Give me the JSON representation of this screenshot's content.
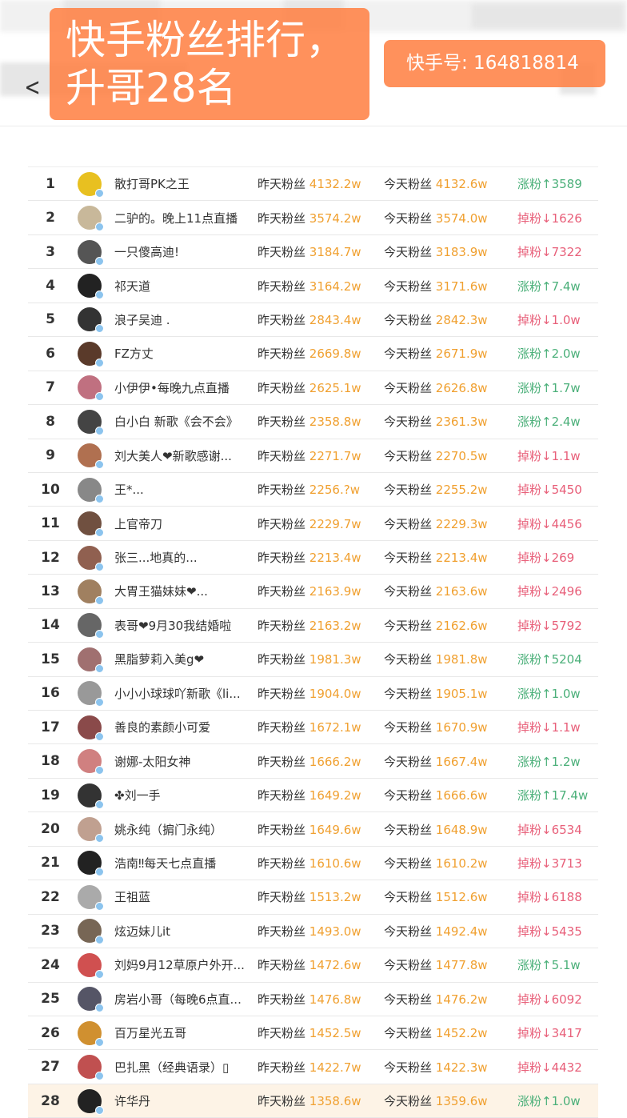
{
  "header": {
    "back_icon": "chevron-left-icon"
  },
  "labels": {
    "yesterday": "昨天粉丝",
    "today": "今天粉丝",
    "gain": "涨粉↑",
    "loss": "掉粉↓"
  },
  "colors": {
    "number": "#f0a030",
    "gain": "#4cb07a",
    "loss": "#e8607a",
    "overlay": "#ff8246",
    "highlight_row": "#fdf3e6"
  },
  "rows": [
    {
      "rank": "1",
      "name": "散打哥PK之王",
      "yesterday": "4132.2w",
      "today": "4132.6w",
      "dir": "up",
      "change": "3589"
    },
    {
      "rank": "2",
      "name": "二驴的。晚上11点直播",
      "yesterday": "3574.2w",
      "today": "3574.0w",
      "dir": "down",
      "change": "1626"
    },
    {
      "rank": "3",
      "name": "一只傻高迪!",
      "yesterday": "3184.7w",
      "today": "3183.9w",
      "dir": "down",
      "change": "7322"
    },
    {
      "rank": "4",
      "name": "祁天道",
      "yesterday": "3164.2w",
      "today": "3171.6w",
      "dir": "up",
      "change": "7.4w"
    },
    {
      "rank": "5",
      "name": "浪子吴迪 .",
      "yesterday": "2843.4w",
      "today": "2842.3w",
      "dir": "down",
      "change": "1.0w"
    },
    {
      "rank": "6",
      "name": "FZ方丈",
      "yesterday": "2669.8w",
      "today": "2671.9w",
      "dir": "up",
      "change": "2.0w"
    },
    {
      "rank": "7",
      "name": "小伊伊•每晚九点直播",
      "yesterday": "2625.1w",
      "today": "2626.8w",
      "dir": "up",
      "change": "1.7w"
    },
    {
      "rank": "8",
      "name": "白小白 新歌《会不会》",
      "yesterday": "2358.8w",
      "today": "2361.3w",
      "dir": "up",
      "change": "2.4w"
    },
    {
      "rank": "9",
      "name": "刘大美人❤新歌感谢...",
      "yesterday": "2271.7w",
      "today": "2270.5w",
      "dir": "down",
      "change": "1.1w"
    },
    {
      "rank": "10",
      "name": "王*...",
      "yesterday": "2256.?w",
      "today": "2255.2w",
      "dir": "down",
      "change": "5450"
    },
    {
      "rank": "11",
      "name": "上官帝刀",
      "yesterday": "2229.7w",
      "today": "2229.3w",
      "dir": "down",
      "change": "4456"
    },
    {
      "rank": "12",
      "name": "张三...地真的...",
      "yesterday": "2213.4w",
      "today": "2213.4w",
      "dir": "down",
      "change": "269"
    },
    {
      "rank": "13",
      "name": "大胃王猫妹妹❤...",
      "yesterday": "2163.9w",
      "today": "2163.6w",
      "dir": "down",
      "change": "2496"
    },
    {
      "rank": "14",
      "name": "表哥❤9月30我结婚啦",
      "yesterday": "2163.2w",
      "today": "2162.6w",
      "dir": "down",
      "change": "5792"
    },
    {
      "rank": "15",
      "name": "黑脂萝莉入美g❤",
      "yesterday": "1981.3w",
      "today": "1981.8w",
      "dir": "up",
      "change": "5204"
    },
    {
      "rank": "16",
      "name": "小小小球球吖新歌《li...",
      "yesterday": "1904.0w",
      "today": "1905.1w",
      "dir": "up",
      "change": "1.0w"
    },
    {
      "rank": "17",
      "name": "善良的素颜小可爱",
      "yesterday": "1672.1w",
      "today": "1670.9w",
      "dir": "down",
      "change": "1.1w"
    },
    {
      "rank": "18",
      "name": "谢娜-太阳女神",
      "yesterday": "1666.2w",
      "today": "1667.4w",
      "dir": "up",
      "change": "1.2w"
    },
    {
      "rank": "19",
      "name": "✤刘一手",
      "yesterday": "1649.2w",
      "today": "1666.6w",
      "dir": "up",
      "change": "17.4w"
    },
    {
      "rank": "20",
      "name": "姚永纯（掮门永纯）",
      "yesterday": "1649.6w",
      "today": "1648.9w",
      "dir": "down",
      "change": "6534"
    },
    {
      "rank": "21",
      "name": "浩南‼每天七点直播",
      "yesterday": "1610.6w",
      "today": "1610.2w",
      "dir": "down",
      "change": "3713"
    },
    {
      "rank": "22",
      "name": "王祖蓝",
      "yesterday": "1513.2w",
      "today": "1512.6w",
      "dir": "down",
      "change": "6188"
    },
    {
      "rank": "23",
      "name": "炫迈妹儿it",
      "yesterday": "1493.0w",
      "today": "1492.4w",
      "dir": "down",
      "change": "5435"
    },
    {
      "rank": "24",
      "name": "刘妈9月12草原户外开...",
      "yesterday": "1472.6w",
      "today": "1477.8w",
      "dir": "up",
      "change": "5.1w"
    },
    {
      "rank": "25",
      "name": "房岩小哥（每晚6点直...",
      "yesterday": "1476.8w",
      "today": "1476.2w",
      "dir": "down",
      "change": "6092"
    },
    {
      "rank": "26",
      "name": "百万星光五哥",
      "yesterday": "1452.5w",
      "today": "1452.2w",
      "dir": "down",
      "change": "3417"
    },
    {
      "rank": "27",
      "name": "巴扎黑（经典语录）▯",
      "yesterday": "1422.7w",
      "today": "1422.3w",
      "dir": "down",
      "change": "4432"
    },
    {
      "rank": "28",
      "name": "许华丹",
      "yesterday": "1358.6w",
      "today": "1359.6w",
      "dir": "up",
      "change": "1.0w",
      "highlight": true
    }
  ],
  "overlay": {
    "title_line1": "快手粉丝排行，",
    "title_line2": "升哥28名",
    "account": "快手号: 164818814"
  }
}
